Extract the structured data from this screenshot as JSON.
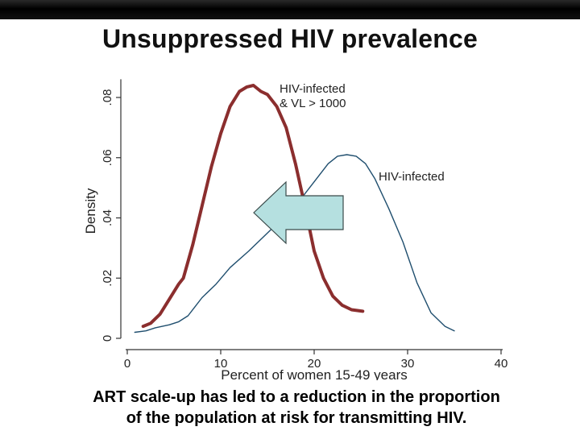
{
  "slide": {
    "title": "Unsuppressed HIV prevalence",
    "caption_line1": "ART scale-up has led to a reduction in the proportion",
    "caption_line2": "of the population at risk for transmitting HIV."
  },
  "chart_data": {
    "type": "line",
    "title": "",
    "xlabel": "Percent of women 15-49 years",
    "ylabel": "Density",
    "xlim": [
      0,
      40
    ],
    "ylim": [
      0,
      0.085
    ],
    "x_ticks": [
      0,
      10,
      20,
      30,
      40
    ],
    "x_tick_labels": [
      "0",
      "10",
      "20",
      "30",
      "40"
    ],
    "y_ticks": [
      0,
      0.02,
      0.04,
      0.06,
      0.08
    ],
    "y_tick_labels": [
      "0",
      ".02",
      ".04",
      ".06",
      ".08"
    ],
    "grid": false,
    "series": [
      {
        "name": "HIV-infected & VL > 1000",
        "label_line1": "HIV-infected",
        "label_line2": "& VL > 1000",
        "color": "#8b2e2e",
        "x": [
          1.7,
          2.5,
          3.5,
          4.5,
          5.5,
          6.0,
          7.0,
          8.0,
          9.0,
          10.0,
          11.0,
          12.0,
          12.8,
          13.5,
          14.3,
          15.0,
          16.0,
          17.0,
          18.0,
          19.0,
          20.0,
          21.0,
          22.0,
          23.0,
          24.0,
          25.2
        ],
        "y": [
          0.004,
          0.005,
          0.008,
          0.013,
          0.018,
          0.02,
          0.031,
          0.044,
          0.057,
          0.068,
          0.077,
          0.082,
          0.0835,
          0.084,
          0.082,
          0.081,
          0.077,
          0.07,
          0.058,
          0.044,
          0.029,
          0.02,
          0.014,
          0.011,
          0.0095,
          0.009
        ]
      },
      {
        "name": "HIV-infected",
        "label_line1": "HIV-infected",
        "label_line2": "",
        "color": "#1f4e6e",
        "x": [
          0.8,
          2.0,
          3.0,
          4.5,
          5.5,
          6.5,
          8.0,
          9.5,
          11.0,
          13.0,
          15.0,
          17.0,
          18.5,
          20.0,
          21.5,
          22.5,
          23.5,
          24.5,
          25.5,
          26.5,
          28.0,
          29.5,
          31.0,
          32.5,
          34.0,
          35.0
        ],
        "y": [
          0.002,
          0.0025,
          0.0035,
          0.0045,
          0.0055,
          0.0075,
          0.0135,
          0.018,
          0.0235,
          0.029,
          0.035,
          0.041,
          0.046,
          0.052,
          0.058,
          0.0605,
          0.061,
          0.0605,
          0.058,
          0.053,
          0.043,
          0.032,
          0.0185,
          0.0085,
          0.004,
          0.0025
        ]
      }
    ],
    "annotation": {
      "type": "arrow",
      "direction": "left",
      "fill": "#b5e0e0",
      "stroke": "#3a4a4a"
    }
  },
  "colors": {
    "top_bar": "#000000",
    "title_text": "#111111",
    "axis": "#333333"
  }
}
